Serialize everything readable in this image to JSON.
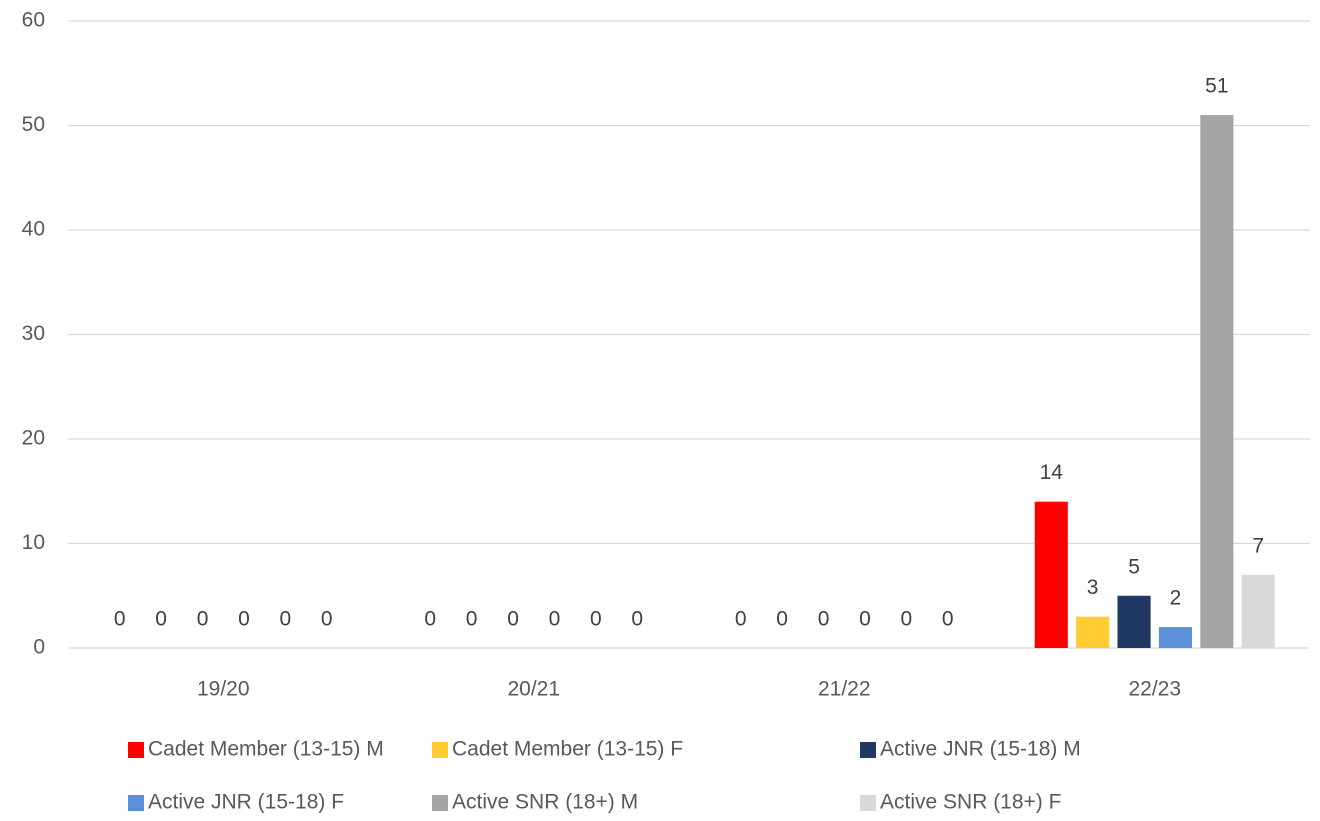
{
  "chart_data": {
    "type": "bar",
    "categories": [
      "19/20",
      "20/21",
      "21/22",
      "22/23"
    ],
    "series": [
      {
        "name": "Cadet Member (13-15) M",
        "color": "#ff0000",
        "values": [
          0,
          0,
          0,
          14
        ]
      },
      {
        "name": "Cadet Member (13-15) F",
        "color": "#ffcc33",
        "values": [
          0,
          0,
          0,
          3
        ]
      },
      {
        "name": "Active JNR (15-18) M",
        "color": "#1f3864",
        "values": [
          0,
          0,
          0,
          5
        ]
      },
      {
        "name": "Active JNR (15-18) F",
        "color": "#5b8fd8",
        "values": [
          0,
          0,
          0,
          2
        ]
      },
      {
        "name": "Active SNR (18+) M",
        "color": "#a5a5a5",
        "values": [
          0,
          0,
          0,
          51
        ]
      },
      {
        "name": "Active SNR (18+) F",
        "color": "#d9d9d9",
        "values": [
          0,
          0,
          0,
          7
        ]
      }
    ],
    "ylim": [
      0,
      60
    ],
    "yticks": [
      0,
      10,
      20,
      30,
      40,
      50,
      60
    ],
    "grid": true,
    "legend": "bottom"
  }
}
